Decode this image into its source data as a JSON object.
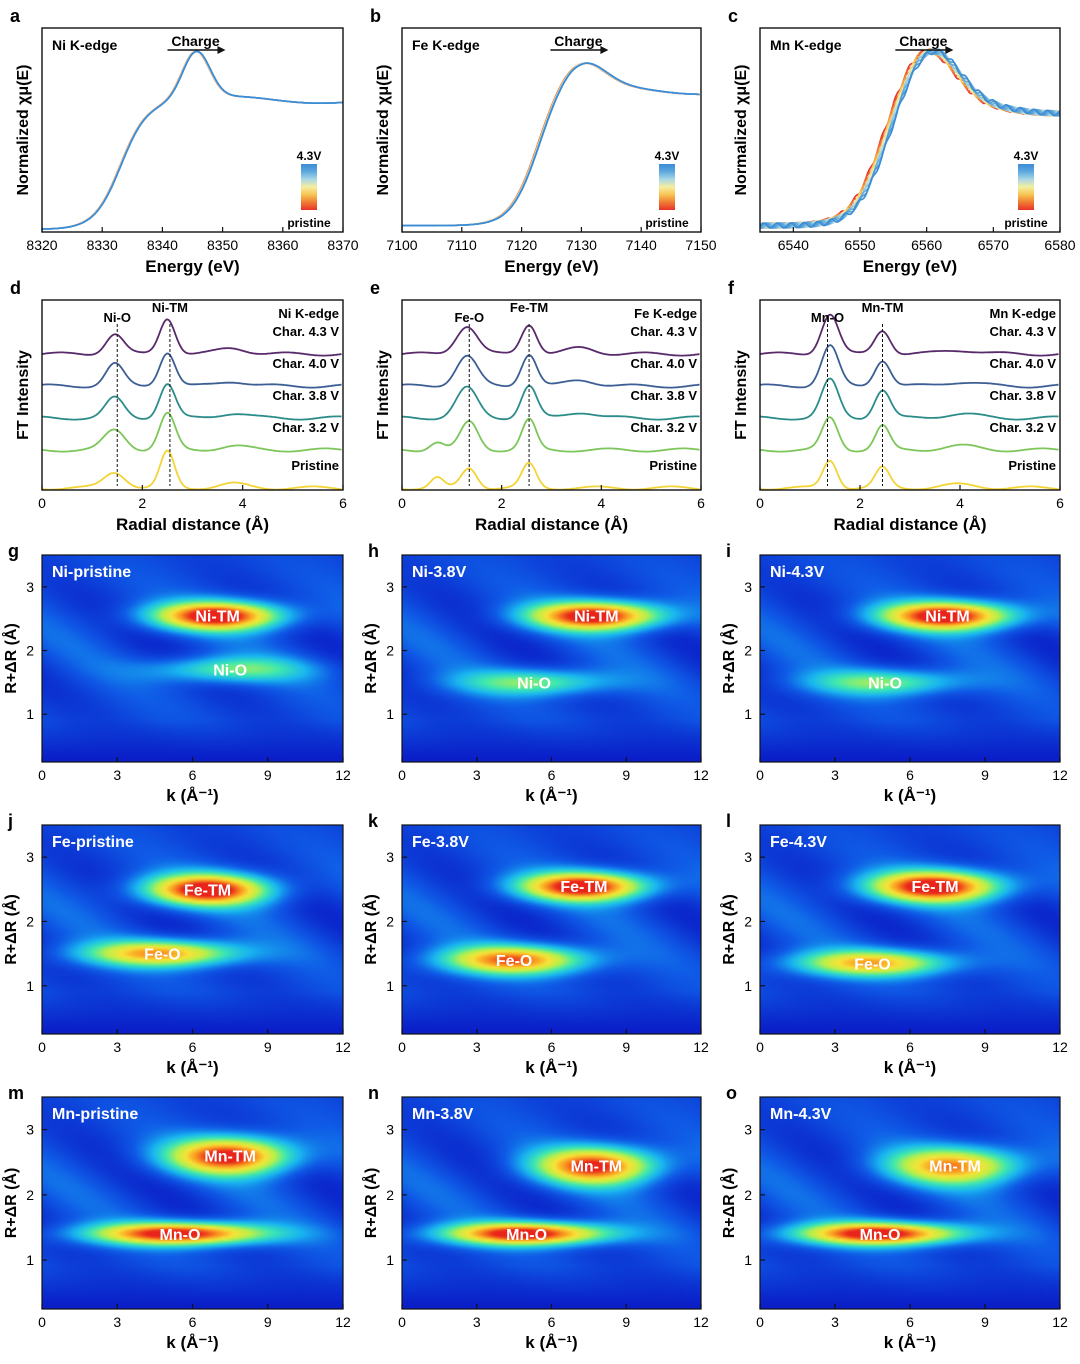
{
  "colors": {
    "ramp_pristine_to_4_3V": [
      "#e8332a",
      "#f07a32",
      "#f6c451",
      "#f4efa0",
      "#a9d8e4",
      "#5ea9de",
      "#3b8bd6"
    ],
    "exafs_traces": [
      "#582a6b",
      "#3d5e95",
      "#2b8c8a",
      "#7cc65a",
      "#f3d436"
    ],
    "wt_colormap": [
      "#0a1fc8",
      "#0f5ae6",
      "#19b6f0",
      "#3ee8b0",
      "#b8f04a",
      "#f8e237",
      "#f9941f",
      "#e8241b"
    ]
  },
  "chart_data": [
    {
      "id": "a",
      "type": "line",
      "panel_letter": "a",
      "title": "Ni K-edge",
      "xlabel": "Energy (eV)",
      "ylabel": "Normalized χμ(E)",
      "xlim": [
        8320,
        8370
      ],
      "xticks": [
        8320,
        8330,
        8340,
        8350,
        8360,
        8370
      ],
      "arrow_label": "Charge",
      "legend": {
        "top": "4.3V",
        "bottom": "pristine",
        "placement": "right"
      },
      "curve": {
        "e0": 8333,
        "peak_x": 8345.5,
        "peak_y": 1.42,
        "post_level": 1.03,
        "width": 3.2,
        "pre": 0.02,
        "shift": 0.15
      },
      "n_curves": 10,
      "ylim": [
        0,
        1.6
      ]
    },
    {
      "id": "b",
      "type": "line",
      "panel_letter": "b",
      "title": "Fe K-edge",
      "xlabel": "Energy (eV)",
      "ylabel": "Normalized χμ(E)",
      "xlim": [
        7100,
        7150
      ],
      "xticks": [
        7100,
        7110,
        7120,
        7130,
        7140,
        7150
      ],
      "arrow_label": "Charge",
      "legend": {
        "top": "4.3V",
        "bottom": "pristine",
        "placement": "right"
      },
      "curve": {
        "e0": 7122,
        "peak_x": 7129.5,
        "peak_y": 1.35,
        "post_level": 1.1,
        "width": 5.5,
        "pre": 0.05,
        "shift": 0.3
      },
      "n_curves": 10,
      "ylim": [
        0,
        1.6
      ]
    },
    {
      "id": "c",
      "type": "line",
      "panel_letter": "c",
      "title": "Mn K-edge",
      "xlabel": "Energy (eV)",
      "ylabel": "Normalized χμ(E)",
      "xlim": [
        6535,
        6580
      ],
      "xticks": [
        6540,
        6550,
        6560,
        6570,
        6580
      ],
      "arrow_label": "Charge",
      "legend": {
        "top": "4.3V",
        "bottom": "pristine",
        "placement": "right"
      },
      "curve": {
        "e0": 6552,
        "peak_x": 6559.5,
        "peak_y": 1.45,
        "post_level": 0.95,
        "width": 6,
        "pre": 0.05,
        "shift": 1.0
      },
      "n_curves": 12,
      "ylim": [
        0,
        1.6
      ]
    },
    {
      "id": "d",
      "type": "line",
      "panel_letter": "d",
      "title": "Ni K-edge",
      "xlabel": "Radial distance (Å)",
      "ylabel": "FT Intensity",
      "xlim": [
        0,
        6
      ],
      "xticks": [
        0,
        2,
        4,
        6
      ],
      "series": [
        {
          "name": "Char. 4.3 V",
          "peaks": [
            [
              1.45,
              0.5,
              0.25
            ],
            [
              2.5,
              0.9,
              0.22
            ],
            [
              3.8,
              0.15,
              0.4
            ]
          ]
        },
        {
          "name": "Char. 4.0 V",
          "peaks": [
            [
              1.45,
              0.55,
              0.25
            ],
            [
              2.5,
              0.85,
              0.22
            ],
            [
              3.8,
              0.12,
              0.4
            ]
          ]
        },
        {
          "name": "Char. 3.8 V",
          "peaks": [
            [
              1.45,
              0.5,
              0.26
            ],
            [
              2.5,
              0.85,
              0.22
            ],
            [
              3.8,
              0.12,
              0.4
            ]
          ]
        },
        {
          "name": "Char. 3.2 V",
          "peaks": [
            [
              1.45,
              0.5,
              0.3
            ],
            [
              2.5,
              0.9,
              0.22
            ],
            [
              3.8,
              0.1,
              0.4
            ]
          ]
        },
        {
          "name": "Pristine",
          "peaks": [
            [
              1.45,
              0.4,
              0.3
            ],
            [
              2.5,
              0.9,
              0.2
            ],
            [
              3.8,
              0.1,
              0.4
            ]
          ]
        }
      ],
      "peak_labels": [
        {
          "text": "Ni-O",
          "x": 1.5
        },
        {
          "text": "Ni-TM",
          "x": 2.55
        }
      ]
    },
    {
      "id": "e",
      "type": "line",
      "panel_letter": "e",
      "title": "Fe K-edge",
      "xlabel": "Radial distance (Å)",
      "ylabel": "FT Intensity",
      "xlim": [
        0,
        6
      ],
      "xticks": [
        0,
        2,
        4,
        6
      ],
      "series": [
        {
          "name": "Char. 4.3 V",
          "peaks": [
            [
              1.3,
              0.7,
              0.3
            ],
            [
              2.55,
              0.75,
              0.22
            ],
            [
              3.6,
              0.15,
              0.4
            ]
          ]
        },
        {
          "name": "Char. 4.0 V",
          "peaks": [
            [
              1.3,
              0.75,
              0.3
            ],
            [
              2.55,
              0.8,
              0.22
            ],
            [
              3.6,
              0.15,
              0.4
            ]
          ]
        },
        {
          "name": "Char. 3.8 V",
          "peaks": [
            [
              1.3,
              0.75,
              0.3
            ],
            [
              2.55,
              0.8,
              0.22
            ],
            [
              3.6,
              0.15,
              0.4
            ]
          ]
        },
        {
          "name": "Char. 3.2 V",
          "peaks": [
            [
              0.7,
              0.2,
              0.2
            ],
            [
              1.35,
              0.7,
              0.25
            ],
            [
              2.55,
              0.75,
              0.2
            ]
          ]
        },
        {
          "name": "Pristine",
          "peaks": [
            [
              0.7,
              0.25,
              0.18
            ],
            [
              1.35,
              0.5,
              0.22
            ],
            [
              2.55,
              0.6,
              0.2
            ]
          ]
        }
      ],
      "peak_labels": [
        {
          "text": "Fe-O",
          "x": 1.35
        },
        {
          "text": "Fe-TM",
          "x": 2.55
        }
      ]
    },
    {
      "id": "f",
      "type": "line",
      "panel_letter": "f",
      "title": "Mn K-edge",
      "xlabel": "Radial distance (Å)",
      "ylabel": "FT Intensity",
      "xlim": [
        0,
        6
      ],
      "xticks": [
        0,
        2,
        4,
        6
      ],
      "series": [
        {
          "name": "Char. 4.3 V",
          "peaks": [
            [
              1.4,
              1.0,
              0.24
            ],
            [
              2.45,
              0.6,
              0.22
            ],
            [
              4.0,
              0.1,
              0.5
            ]
          ]
        },
        {
          "name": "Char. 4.0 V",
          "peaks": [
            [
              1.4,
              1.0,
              0.24
            ],
            [
              2.45,
              0.65,
              0.22
            ],
            [
              4.0,
              0.1,
              0.5
            ]
          ]
        },
        {
          "name": "Char. 3.8 V",
          "peaks": [
            [
              1.4,
              0.95,
              0.24
            ],
            [
              2.45,
              0.7,
              0.22
            ],
            [
              4.0,
              0.1,
              0.5
            ]
          ]
        },
        {
          "name": "Char. 3.2 V",
          "peaks": [
            [
              1.4,
              0.8,
              0.22
            ],
            [
              2.45,
              0.6,
              0.2
            ],
            [
              4.0,
              0.1,
              0.5
            ]
          ]
        },
        {
          "name": "Pristine",
          "peaks": [
            [
              1.4,
              0.7,
              0.2
            ],
            [
              2.45,
              0.5,
              0.2
            ],
            [
              4.0,
              0.08,
              0.5
            ]
          ]
        }
      ],
      "peak_labels": [
        {
          "text": "Mn-O",
          "x": 1.35
        },
        {
          "text": "Mn-TM",
          "x": 2.45
        }
      ]
    },
    {
      "id": "g",
      "type": "heatmap",
      "panel_letter": "g",
      "title": "Ni-pristine",
      "xlabel": "k (Å⁻¹)",
      "ylabel": "R+ΔR (Å)",
      "xlim": [
        0,
        12
      ],
      "ylim": [
        0.25,
        3.5
      ],
      "xticks": [
        0,
        3,
        6,
        9,
        12
      ],
      "yticks": [
        1,
        2,
        3
      ],
      "features": [
        {
          "label": "Ni-TM",
          "k": 7.0,
          "r": 2.55,
          "sk": 2.5,
          "sr": 0.22,
          "amp": 1.0
        },
        {
          "label": "Ni-O",
          "k": 7.5,
          "r": 1.7,
          "sk": 3.0,
          "sr": 0.2,
          "amp": 0.4
        }
      ]
    },
    {
      "id": "h",
      "type": "heatmap",
      "panel_letter": "h",
      "title": "Ni-3.8V",
      "xlabel": "k (Å⁻¹)",
      "ylabel": "R+ΔR (Å)",
      "xlim": [
        0,
        12
      ],
      "ylim": [
        0.25,
        3.5
      ],
      "xticks": [
        0,
        3,
        6,
        9,
        12
      ],
      "yticks": [
        1,
        2,
        3
      ],
      "features": [
        {
          "label": "Ni-TM",
          "k": 7.8,
          "r": 2.55,
          "sk": 2.6,
          "sr": 0.22,
          "amp": 1.0
        },
        {
          "label": "Ni-O",
          "k": 5.3,
          "r": 1.5,
          "sk": 3.0,
          "sr": 0.2,
          "amp": 0.42
        }
      ]
    },
    {
      "id": "i",
      "type": "heatmap",
      "panel_letter": "i",
      "title": "Ni-4.3V",
      "xlabel": "k (Å⁻¹)",
      "ylabel": "R+ΔR (Å)",
      "xlim": [
        0,
        12
      ],
      "ylim": [
        0.25,
        3.5
      ],
      "xticks": [
        0,
        3,
        6,
        9,
        12
      ],
      "yticks": [
        1,
        2,
        3
      ],
      "features": [
        {
          "label": "Ni-TM",
          "k": 7.5,
          "r": 2.55,
          "sk": 2.6,
          "sr": 0.22,
          "amp": 1.0
        },
        {
          "label": "Ni-O",
          "k": 5.0,
          "r": 1.5,
          "sk": 3.0,
          "sr": 0.2,
          "amp": 0.42
        }
      ]
    },
    {
      "id": "j",
      "type": "heatmap",
      "panel_letter": "j",
      "title": "Fe-pristine",
      "xlabel": "k (Å⁻¹)",
      "ylabel": "R+ΔR (Å)",
      "xlim": [
        0,
        12
      ],
      "ylim": [
        0.25,
        3.5
      ],
      "xticks": [
        0,
        3,
        6,
        9,
        12
      ],
      "yticks": [
        1,
        2,
        3
      ],
      "features": [
        {
          "label": "Fe-TM",
          "k": 6.6,
          "r": 2.5,
          "sk": 2.4,
          "sr": 0.24,
          "amp": 1.0
        },
        {
          "label": "Fe-O",
          "k": 4.8,
          "r": 1.5,
          "sk": 3.0,
          "sr": 0.2,
          "amp": 0.75
        }
      ]
    },
    {
      "id": "k",
      "type": "heatmap",
      "panel_letter": "k",
      "title": "Fe-3.8V",
      "xlabel": "k (Å⁻¹)",
      "ylabel": "R+ΔR (Å)",
      "xlim": [
        0,
        12
      ],
      "ylim": [
        0.25,
        3.5
      ],
      "xticks": [
        0,
        3,
        6,
        9,
        12
      ],
      "yticks": [
        1,
        2,
        3
      ],
      "features": [
        {
          "label": "Fe-TM",
          "k": 7.3,
          "r": 2.55,
          "sk": 2.5,
          "sr": 0.22,
          "amp": 1.0
        },
        {
          "label": "Fe-O",
          "k": 4.5,
          "r": 1.4,
          "sk": 2.8,
          "sr": 0.22,
          "amp": 0.82
        }
      ]
    },
    {
      "id": "l",
      "type": "heatmap",
      "panel_letter": "l",
      "title": "Fe-4.3V",
      "xlabel": "k (Å⁻¹)",
      "ylabel": "R+ΔR (Å)",
      "xlim": [
        0,
        12
      ],
      "ylim": [
        0.25,
        3.5
      ],
      "xticks": [
        0,
        3,
        6,
        9,
        12
      ],
      "yticks": [
        1,
        2,
        3
      ],
      "features": [
        {
          "label": "Fe-TM",
          "k": 7.0,
          "r": 2.55,
          "sk": 2.6,
          "sr": 0.24,
          "amp": 1.0
        },
        {
          "label": "Fe-O",
          "k": 4.5,
          "r": 1.35,
          "sk": 3.0,
          "sr": 0.2,
          "amp": 0.7
        }
      ]
    },
    {
      "id": "m",
      "type": "heatmap",
      "panel_letter": "m",
      "title": "Mn-pristine",
      "xlabel": "k (Å⁻¹)",
      "ylabel": "R+ΔR (Å)",
      "xlim": [
        0,
        12
      ],
      "ylim": [
        0.25,
        3.5
      ],
      "xticks": [
        0,
        3,
        6,
        9,
        12
      ],
      "yticks": [
        1,
        2,
        3
      ],
      "features": [
        {
          "label": "Mn-TM",
          "k": 7.5,
          "r": 2.6,
          "sk": 2.4,
          "sr": 0.28,
          "amp": 0.95
        },
        {
          "label": "Mn-O",
          "k": 5.5,
          "r": 1.4,
          "sk": 3.4,
          "sr": 0.17,
          "amp": 1.0
        }
      ]
    },
    {
      "id": "n",
      "type": "heatmap",
      "panel_letter": "n",
      "title": "Mn-3.8V",
      "xlabel": "k (Å⁻¹)",
      "ylabel": "R+ΔR (Å)",
      "xlim": [
        0,
        12
      ],
      "ylim": [
        0.25,
        3.5
      ],
      "xticks": [
        0,
        3,
        6,
        9,
        12
      ],
      "yticks": [
        1,
        2,
        3
      ],
      "features": [
        {
          "label": "Mn-TM",
          "k": 7.8,
          "r": 2.45,
          "sk": 2.4,
          "sr": 0.28,
          "amp": 0.9
        },
        {
          "label": "Mn-O",
          "k": 5.0,
          "r": 1.4,
          "sk": 3.2,
          "sr": 0.17,
          "amp": 1.0
        }
      ]
    },
    {
      "id": "o",
      "type": "heatmap",
      "panel_letter": "o",
      "title": "Mn-4.3V",
      "xlabel": "k (Å⁻¹)",
      "ylabel": "R+ΔR (Å)",
      "xlim": [
        0,
        12
      ],
      "ylim": [
        0.25,
        3.5
      ],
      "xticks": [
        0,
        3,
        6,
        9,
        12
      ],
      "yticks": [
        1,
        2,
        3
      ],
      "features": [
        {
          "label": "Mn-TM",
          "k": 7.8,
          "r": 2.45,
          "sk": 2.6,
          "sr": 0.28,
          "amp": 0.75
        },
        {
          "label": "Mn-O",
          "k": 4.8,
          "r": 1.4,
          "sk": 3.2,
          "sr": 0.17,
          "amp": 1.0
        }
      ]
    }
  ]
}
